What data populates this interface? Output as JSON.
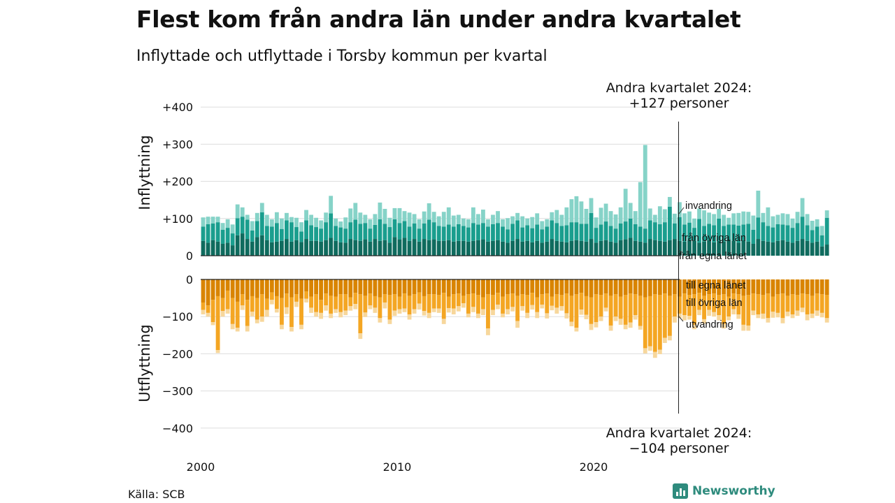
{
  "title": "Flest kom från andra län under andra kvartalet",
  "subtitle": "Inflyttade och utflyttade i Torsby kommun per kvartal",
  "source": "Källa: SCB",
  "brand": "Newsworthy",
  "annotations": {
    "top_line1": "Andra kvartalet 2024:",
    "top_line2": "+127 personer",
    "bottom_line1": "Andra kvartalet 2024:",
    "bottom_line2": "−104 personer"
  },
  "colors": {
    "in_own": "#0f6b5e",
    "in_other": "#1a9e8e",
    "in_immig": "#86d3c8",
    "out_own": "#d98400",
    "out_other": "#f4a623",
    "out_emig": "#f7d79c",
    "grid": "#dddddd"
  },
  "chart_data": {
    "type": "bar",
    "stacked": true,
    "x_start": 2000,
    "x_step": 0.25,
    "x_ticks": [
      {
        "value": 2000,
        "label": "2000"
      },
      {
        "value": 2010,
        "label": "2010"
      },
      {
        "value": 2020,
        "label": "2020"
      }
    ],
    "panels": [
      {
        "name": "inflyttning",
        "ylabel": "Inflyttning",
        "ylim": [
          0,
          400
        ],
        "y_ticks": [
          {
            "value": 0,
            "label": "0"
          },
          {
            "value": 100,
            "label": "+100"
          },
          {
            "value": 200,
            "label": "+200"
          },
          {
            "value": 300,
            "label": "+300"
          },
          {
            "value": 400,
            "label": "+400"
          }
        ],
        "series": [
          {
            "name": "från egna länet",
            "values": [
              40,
              35,
              42,
              38,
              32,
              35,
              28,
              55,
              60,
              45,
              38,
              50,
              55,
              42,
              36,
              38,
              40,
              45,
              38,
              42,
              37,
              45,
              40,
              40,
              38,
              42,
              48,
              40,
              36,
              35,
              45,
              42,
              40,
              44,
              38,
              45,
              40,
              42,
              35,
              50,
              44,
              48,
              40,
              45,
              38,
              45,
              42,
              44,
              40,
              40,
              42,
              38,
              40,
              40,
              38,
              40,
              42,
              44,
              38,
              40,
              42,
              38,
              35,
              40,
              45,
              38,
              40,
              36,
              40,
              35,
              38,
              45,
              40,
              38,
              36,
              40,
              42,
              40,
              38,
              45,
              35,
              40,
              42,
              38,
              35,
              42,
              44,
              48,
              40,
              38,
              35,
              45,
              42,
              40,
              38,
              42,
              45,
              40,
              38,
              42,
              40,
              35,
              38,
              42,
              36,
              40,
              38,
              44,
              40,
              35,
              42,
              38,
              32,
              45,
              40,
              38,
              36,
              40,
              42,
              38,
              35,
              40,
              45,
              40,
              35,
              38,
              25,
              30
            ]
          },
          {
            "name": "från övriga län",
            "values": [
              38,
              50,
              45,
              52,
              38,
              40,
              32,
              46,
              45,
              52,
              30,
              43,
              62,
              38,
              42,
              50,
              32,
              50,
              52,
              35,
              28,
              50,
              42,
              37,
              35,
              48,
              66,
              40,
              40,
              38,
              45,
              55,
              46,
              44,
              35,
              38,
              58,
              44,
              42,
              48,
              44,
              45,
              38,
              42,
              35,
              42,
              55,
              46,
              40,
              38,
              42,
              40,
              45,
              40,
              38,
              48,
              42,
              44,
              40,
              45,
              46,
              40,
              36,
              46,
              50,
              38,
              42,
              38,
              44,
              36,
              40,
              50,
              48,
              42,
              46,
              50,
              48,
              46,
              48,
              70,
              40,
              44,
              50,
              42,
              38,
              45,
              48,
              52,
              45,
              40,
              38,
              50,
              48,
              45,
              52,
              90,
              42,
              64,
              46,
              47,
              35,
              64,
              42,
              44,
              46,
              60,
              42,
              40,
              44,
              46,
              42,
              48,
              38,
              58,
              50,
              42,
              40,
              45,
              42,
              44,
              40,
              48,
              60,
              42,
              34,
              40,
              30,
              72
            ]
          },
          {
            "name": "invandring",
            "values": [
              25,
              20,
              18,
              15,
              18,
              23,
              24,
              37,
              25,
              13,
              25,
              22,
              25,
              30,
              20,
              29,
              28,
              20,
              14,
              25,
              25,
              28,
              28,
              25,
              22,
              26,
              47,
              20,
              16,
              30,
              37,
              45,
              30,
              22,
              25,
              29,
              45,
              40,
              25,
              30,
              40,
              27,
              38,
              25,
              25,
              32,
              44,
              28,
              26,
              40,
              46,
              30,
              25,
              20,
              22,
              42,
              28,
              36,
              20,
              25,
              32,
              20,
              30,
              20,
              20,
              30,
              18,
              30,
              30,
              22,
              20,
              22,
              35,
              30,
              48,
              62,
              70,
              60,
              40,
              40,
              28,
              45,
              48,
              40,
              38,
              43,
              88,
              42,
              35,
              120,
              225,
              32,
              20,
              48,
              35,
              26,
              26,
              40,
              30,
              30,
              25,
              28,
              42,
              30,
              30,
              26,
              30,
              18,
              30,
              34,
              35,
              32,
              38,
              72,
              25,
              50,
              30,
              25,
              30,
              30,
              25,
              30,
              50,
              30,
              25,
              20,
              25,
              20
            ]
          }
        ]
      },
      {
        "name": "utflyttning",
        "ylabel": "Utflyttning",
        "ylim": [
          -400,
          0
        ],
        "y_ticks": [
          {
            "value": 0,
            "label": "0"
          },
          {
            "value": -100,
            "label": "−100"
          },
          {
            "value": -200,
            "label": "−200"
          },
          {
            "value": -300,
            "label": "−300"
          },
          {
            "value": -400,
            "label": "−400"
          }
        ],
        "series": [
          {
            "name": "till egna länet",
            "values": [
              -62,
              -70,
              -55,
              -45,
              -50,
              -30,
              -50,
              -60,
              -40,
              -55,
              -45,
              -50,
              -40,
              -52,
              -35,
              -45,
              -50,
              -38,
              -48,
              -40,
              -52,
              -32,
              -46,
              -40,
              -55,
              -38,
              -44,
              -46,
              -40,
              -40,
              -48,
              -36,
              -40,
              -44,
              -38,
              -45,
              -48,
              -40,
              -42,
              -40,
              -46,
              -38,
              -44,
              -40,
              -35,
              -45,
              -40,
              -40,
              -42,
              -36,
              -46,
              -40,
              -38,
              -44,
              -40,
              -38,
              -42,
              -48,
              -40,
              -42,
              -36,
              -46,
              -40,
              -38,
              -44,
              -40,
              -42,
              -36,
              -48,
              -40,
              -38,
              -46,
              -40,
              -42,
              -38,
              -44,
              -40,
              -36,
              -45,
              -48,
              -40,
              -42,
              -38,
              -44,
              -40,
              -46,
              -42,
              -38,
              -40,
              -44,
              -48,
              -45,
              -40,
              -42,
              -38,
              -44,
              -40,
              -46,
              -38,
              -42,
              -40,
              -36,
              -44,
              -40,
              -38,
              -42,
              -40,
              -46,
              -38,
              -40,
              -44,
              -42,
              -38,
              -40,
              -42,
              -38,
              -46,
              -40,
              -38,
              -44,
              -40,
              -42,
              -38,
              -40,
              -44,
              -38,
              -40,
              -42
            ]
          },
          {
            "name": "till övriga län",
            "values": [
              -20,
              -20,
              -60,
              -145,
              -35,
              -50,
              -70,
              -70,
              -30,
              -70,
              -42,
              -58,
              -60,
              -30,
              -20,
              -34,
              -72,
              -37,
              -80,
              -20,
              -70,
              -20,
              -30,
              -48,
              -35,
              -32,
              -48,
              -34,
              -48,
              -44,
              -24,
              -30,
              -105,
              -45,
              -32,
              -31,
              -56,
              -22,
              -66,
              -44,
              -34,
              -40,
              -50,
              -40,
              -30,
              -40,
              -50,
              -38,
              -36,
              -70,
              -31,
              -38,
              -34,
              -20,
              -52,
              -36,
              -50,
              -32,
              -92,
              -40,
              -32,
              -46,
              -40,
              -36,
              -68,
              -32,
              -48,
              -33,
              -40,
              -28,
              -53,
              -25,
              -36,
              -30,
              -53,
              -70,
              -90,
              -45,
              -50,
              -72,
              -75,
              -58,
              -38,
              -80,
              -60,
              -60,
              -80,
              -78,
              -56,
              -81,
              -137,
              -135,
              -155,
              -147,
              -119,
              -108,
              -60,
              -46,
              -58,
              -56,
              -82,
              -46,
              -63,
              -42,
              -50,
              -54,
              -80,
              -54,
              -42,
              -54,
              -78,
              -82,
              -46,
              -54,
              -50,
              -66,
              -41,
              -50,
              -66,
              -43,
              -54,
              -42,
              -38,
              -54,
              -48,
              -46,
              -50,
              -62
            ]
          },
          {
            "name": "utvandring",
            "values": [
              -12,
              -10,
              -8,
              -8,
              -15,
              -12,
              -14,
              -10,
              -12,
              -15,
              -12,
              -10,
              -14,
              -18,
              -12,
              -10,
              -12,
              -18,
              -12,
              -14,
              -12,
              -10,
              -14,
              -12,
              -16,
              -14,
              -12,
              -10,
              -14,
              -12,
              -12,
              -14,
              -15,
              -12,
              -10,
              -14,
              -12,
              -16,
              -12,
              -14,
              -12,
              -10,
              -14,
              -12,
              -16,
              -12,
              -14,
              -10,
              -12,
              -14,
              -12,
              -16,
              -14,
              -12,
              -10,
              -14,
              -12,
              -16,
              -18,
              -14,
              -12,
              -10,
              -14,
              -12,
              -18,
              -12,
              -14,
              -12,
              -16,
              -10,
              -14,
              -12,
              -16,
              -12,
              -14,
              -12,
              -10,
              -14,
              -12,
              -16,
              -14,
              -12,
              -10,
              -14,
              -12,
              -16,
              -12,
              -14,
              -12,
              -10,
              -14,
              -12,
              -16,
              -12,
              -14,
              -12,
              -16,
              -12,
              -14,
              -10,
              -12,
              -14,
              -12,
              -16,
              -12,
              -14,
              -12,
              -10,
              -14,
              -12,
              -16,
              -14,
              -12,
              -10,
              -14,
              -12,
              -16,
              -12,
              -14,
              -12,
              -10,
              -14,
              -12,
              -16,
              -12,
              -14,
              -12,
              -12
            ]
          }
        ]
      }
    ]
  },
  "series_labels": {
    "in_immig": "invandring",
    "in_other": "från övriga län",
    "in_own": "från egna länet",
    "out_own": "till egna länet",
    "out_other": "till övriga län",
    "out_emig": "utvandring"
  }
}
